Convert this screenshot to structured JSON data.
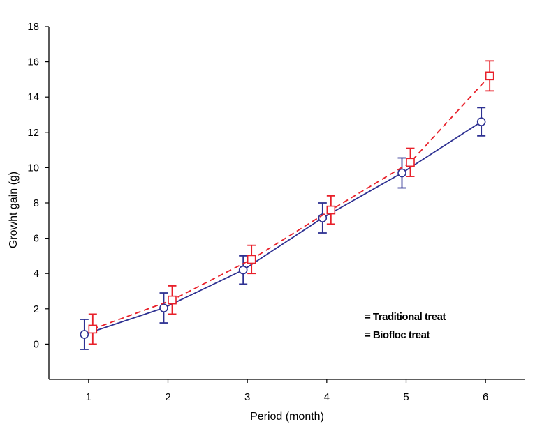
{
  "chart_data": {
    "type": "line",
    "title": "",
    "xlabel": "Period (month)",
    "ylabel": "Growht  gain (g)",
    "categories": [
      "1",
      "2",
      "3",
      "4",
      "5",
      "6"
    ],
    "x": [
      1,
      2,
      3,
      4,
      5,
      6
    ],
    "xlim": [
      0.5,
      6.5
    ],
    "ylim": [
      -2,
      18
    ],
    "yticks": [
      0,
      2,
      4,
      6,
      8,
      10,
      12,
      14,
      16,
      18
    ],
    "ytick_labels": [
      "0",
      "2",
      "4",
      "6",
      "8",
      "10",
      "12",
      "14",
      "16",
      "18"
    ],
    "grid": false,
    "legend_position": "lower-right",
    "series": [
      {
        "name": "Traditional treat",
        "line": "solid",
        "marker": "circle",
        "color": "#2e3192",
        "values": [
          0.55,
          2.05,
          4.2,
          7.15,
          9.7,
          12.6
        ],
        "error": [
          0.85,
          0.85,
          0.8,
          0.85,
          0.85,
          0.8
        ]
      },
      {
        "name": "Biofloc treat",
        "line": "dashed",
        "marker": "square",
        "color": "#e8202a",
        "values": [
          0.85,
          2.5,
          4.8,
          7.6,
          10.3,
          15.2
        ],
        "error": [
          0.85,
          0.8,
          0.8,
          0.8,
          0.8,
          0.85
        ]
      }
    ],
    "legend": {
      "entries": [
        "= Traditional treat",
        "= Biofloc treat"
      ]
    }
  }
}
